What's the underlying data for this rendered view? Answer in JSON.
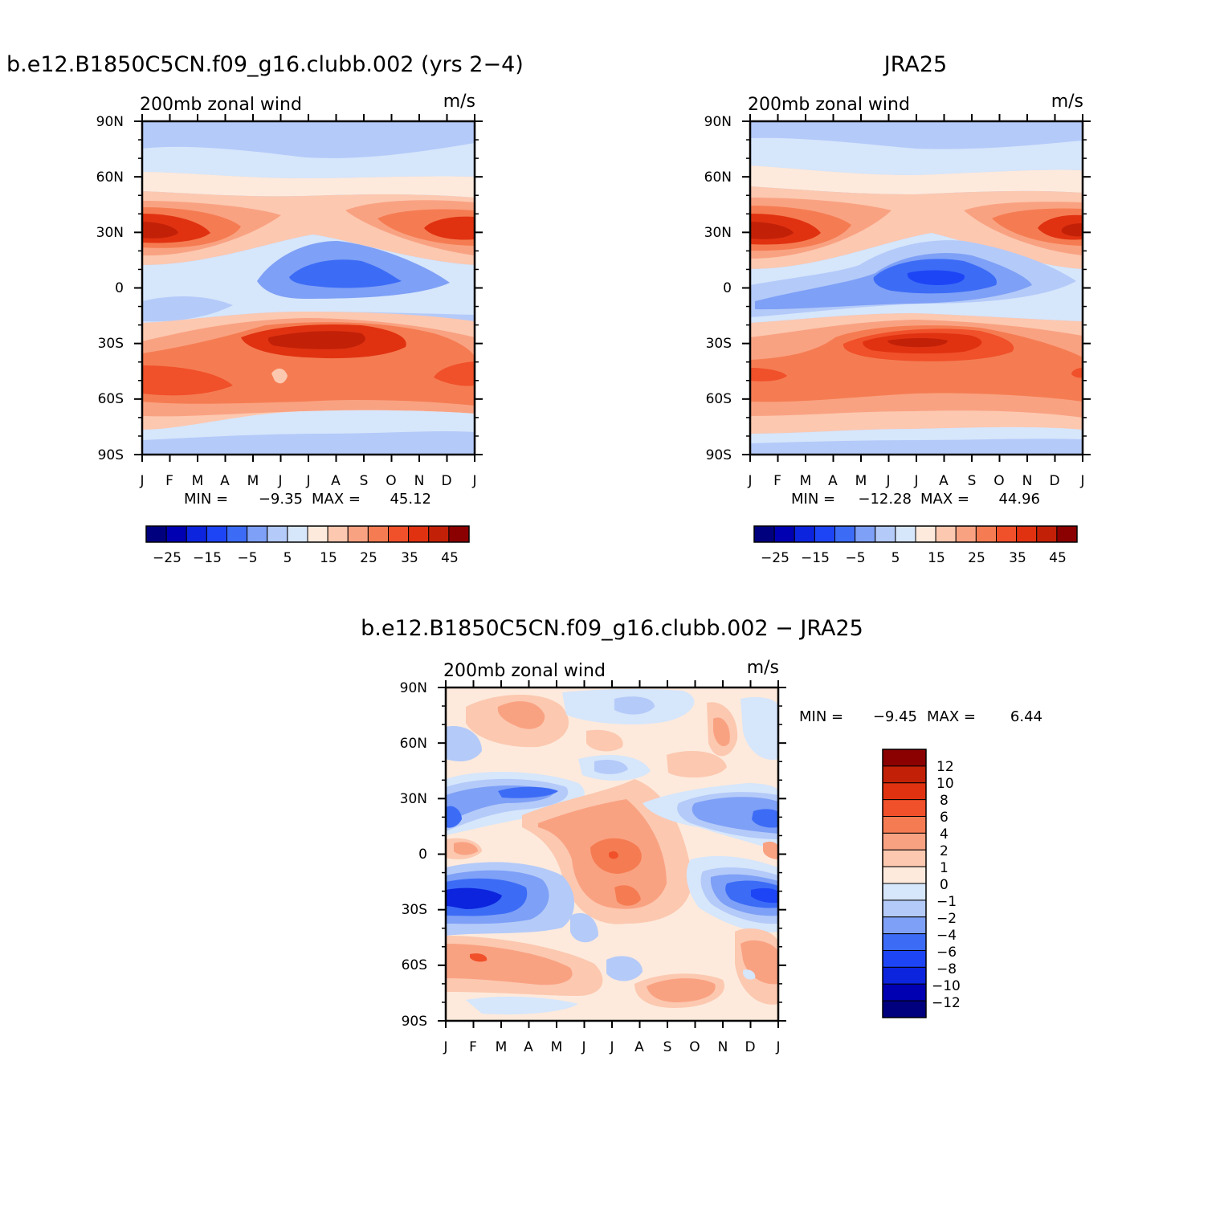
{
  "colors": {
    "model_obs_scale": [
      "#00007f",
      "#0000b2",
      "#0c24dd",
      "#1e45f5",
      "#3c6cf6",
      "#7ea0f6",
      "#b4caf9",
      "#d6e6fb",
      "#fdeadc",
      "#fcc8b0",
      "#f9a282",
      "#f57c52",
      "#f0502a",
      "#e03211",
      "#c22108",
      "#8b0000"
    ],
    "diff_scale": [
      "#8b0000",
      "#c22108",
      "#e03211",
      "#f0502a",
      "#f57c52",
      "#f9a282",
      "#fcc8b0",
      "#fdeadc",
      "#d6e6fb",
      "#b4caf9",
      "#7ea0f6",
      "#3c6cf6",
      "#1e45f5",
      "#0c24dd",
      "#0000b2",
      "#00007f"
    ]
  },
  "chart_data": [
    {
      "id": "model",
      "type": "heatmap",
      "title": "b.e12.B1850C5CN.f09_g16.clubb.002 (yrs 2−4)",
      "variable": "200mb zonal wind",
      "units": "m/s",
      "x_ticks": [
        "J",
        "F",
        "M",
        "A",
        "M",
        "J",
        "J",
        "A",
        "S",
        "O",
        "N",
        "D",
        "J"
      ],
      "y_ticks": [
        "90N",
        "60N",
        "30N",
        "0",
        "30S",
        "60S",
        "90S"
      ],
      "min_label": "MIN =",
      "min_value": "−9.35",
      "max_label": "MAX =",
      "max_value": "45.12",
      "colorbar_labels": [
        "−25",
        "−15",
        "−5",
        "5",
        "15",
        "25",
        "35",
        "45"
      ]
    },
    {
      "id": "obs",
      "type": "heatmap",
      "title": "JRA25",
      "variable": "200mb zonal wind",
      "units": "m/s",
      "x_ticks": [
        "J",
        "F",
        "M",
        "A",
        "M",
        "J",
        "J",
        "A",
        "S",
        "O",
        "N",
        "D",
        "J"
      ],
      "y_ticks": [
        "90N",
        "60N",
        "30N",
        "0",
        "30S",
        "60S",
        "90S"
      ],
      "min_label": "MIN =",
      "min_value": "−12.28",
      "max_label": "MAX =",
      "max_value": "44.96",
      "colorbar_labels": [
        "−25",
        "−15",
        "−5",
        "5",
        "15",
        "25",
        "35",
        "45"
      ]
    },
    {
      "id": "diff",
      "type": "heatmap",
      "title": "b.e12.B1850C5CN.f09_g16.clubb.002 − JRA25",
      "variable": "200mb zonal wind",
      "units": "m/s",
      "x_ticks": [
        "J",
        "F",
        "M",
        "A",
        "M",
        "J",
        "J",
        "A",
        "S",
        "O",
        "N",
        "D",
        "J"
      ],
      "y_ticks": [
        "90N",
        "60N",
        "30N",
        "0",
        "30S",
        "60S",
        "90S"
      ],
      "min_label": "MIN =",
      "min_value": "−9.45",
      "max_label": "MAX =",
      "max_value": "6.44",
      "colorbar_labels": [
        "12",
        "10",
        "8",
        "6",
        "4",
        "2",
        "1",
        "0",
        "−1",
        "−2",
        "−4",
        "−6",
        "−8",
        "−10",
        "−12"
      ]
    }
  ]
}
